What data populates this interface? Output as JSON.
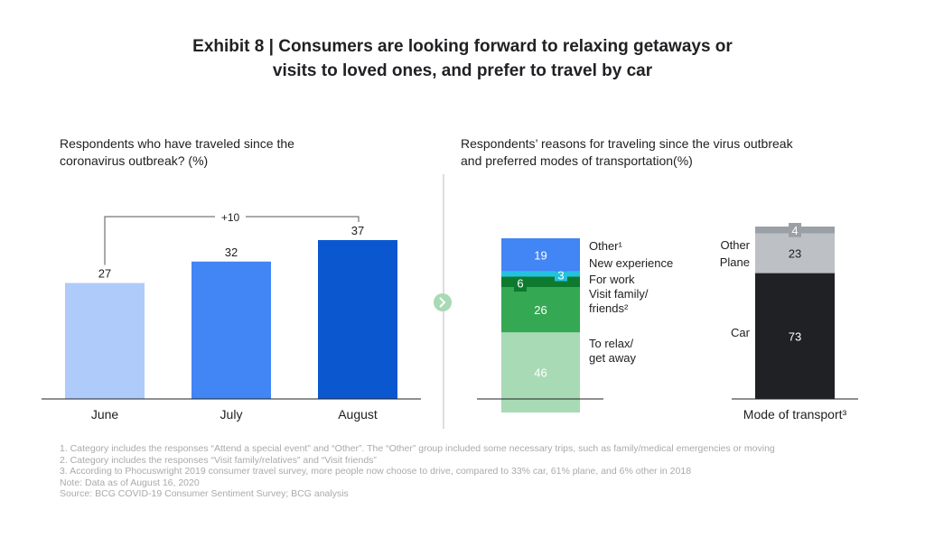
{
  "title_line1": "Exhibit 8 | Consumers are looking forward to relaxing getaways or",
  "title_line2": "visits to loved ones, and prefer to travel by car",
  "chart_data": [
    {
      "type": "bar",
      "title": "Respondents who have traveled since the coronavirus outbreak? (%)",
      "categories": [
        "June",
        "July",
        "August"
      ],
      "values": [
        27,
        32,
        37
      ],
      "colors": [
        "#aecbfa",
        "#4285f4",
        "#0b57d0"
      ],
      "annotation": "+10",
      "ylim": [
        0,
        40
      ]
    },
    {
      "type": "stacked-bar",
      "title": "Respondents’ reasons for traveling since the virus outbreak and preferred modes of transportation(%)",
      "bars": [
        {
          "label": "",
          "segments": [
            {
              "name": "To relax/ get away",
              "value": 46,
              "color": "#a8dab5"
            },
            {
              "name": "Visit family/ friends²",
              "value": 26,
              "color": "#34a853"
            },
            {
              "name": "For work",
              "value": 6,
              "color": "#0d7a2e"
            },
            {
              "name": "New experience",
              "value": 3,
              "color": "#24c1e0"
            },
            {
              "name": "Other¹",
              "value": 19,
              "color": "#4285f4"
            }
          ]
        },
        {
          "label": "Mode of transport³",
          "segments": [
            {
              "name": "Car",
              "value": 73,
              "color": "#202124"
            },
            {
              "name": "Plane",
              "value": 23,
              "color": "#bdc1c6"
            },
            {
              "name": "Other",
              "value": 4,
              "color": "#9aa0a6"
            }
          ]
        }
      ]
    }
  ],
  "notes": [
    "1. Category includes the responses “Attend a special event” and “Other”. The “Other” group included some necessary trips, such as family/medical emergencies or moving",
    "2. Category includes the responses “Visit family/relatives” and “Visit friends”",
    "3. According to Phocuswright 2019 consumer travel survey, more people now choose to drive, compared to 33% car, 61% plane, and 6% other in 2018",
    "Note: Data as of August 16, 2020",
    "Source: BCG COVID-19 Consumer Sentiment Survey; BCG analysis"
  ]
}
